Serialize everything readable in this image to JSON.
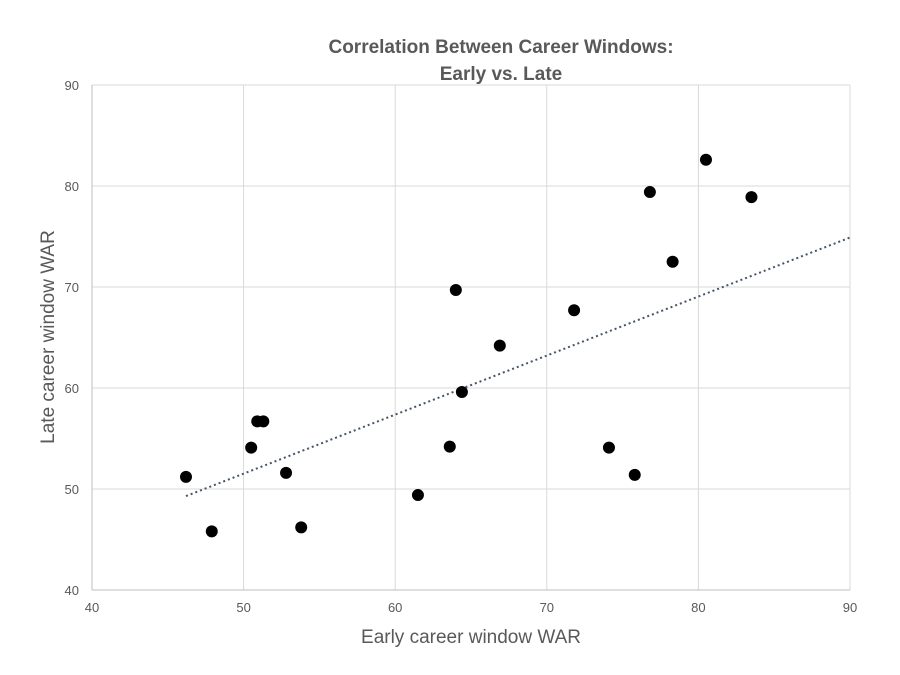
{
  "chart_data": {
    "type": "scatter",
    "title": [
      "Correlation Between Career Windows:",
      "Early vs. Late"
    ],
    "xlabel": "Early career window WAR",
    "ylabel": "Late career window WAR",
    "xlim": [
      40,
      90
    ],
    "ylim": [
      40,
      90
    ],
    "xticks": [
      40,
      50,
      60,
      70,
      80,
      90
    ],
    "yticks": [
      40,
      50,
      60,
      70,
      80,
      90
    ],
    "grid": true,
    "legend": "none",
    "colors": {
      "points": "#000000",
      "trendline": "#44546a",
      "gridlines": "#d9d9d9",
      "text": "#595959"
    },
    "series": [
      {
        "points": [
          {
            "x": 46.2,
            "y": 51.2
          },
          {
            "x": 47.9,
            "y": 45.8
          },
          {
            "x": 50.5,
            "y": 54.1
          },
          {
            "x": 50.9,
            "y": 56.7
          },
          {
            "x": 51.3,
            "y": 56.7
          },
          {
            "x": 52.8,
            "y": 51.6
          },
          {
            "x": 53.8,
            "y": 46.2
          },
          {
            "x": 61.5,
            "y": 49.4
          },
          {
            "x": 63.6,
            "y": 54.2
          },
          {
            "x": 64.0,
            "y": 69.7
          },
          {
            "x": 64.4,
            "y": 59.6
          },
          {
            "x": 66.9,
            "y": 64.2
          },
          {
            "x": 71.8,
            "y": 67.7
          },
          {
            "x": 74.1,
            "y": 54.1
          },
          {
            "x": 75.8,
            "y": 51.4
          },
          {
            "x": 76.8,
            "y": 79.4
          },
          {
            "x": 78.3,
            "y": 72.5
          },
          {
            "x": 80.5,
            "y": 82.6
          },
          {
            "x": 83.5,
            "y": 78.9
          }
        ]
      }
    ],
    "trendline": {
      "style": "dotted",
      "x": [
        46.2,
        90
      ],
      "y": [
        49.3,
        74.9
      ]
    }
  }
}
